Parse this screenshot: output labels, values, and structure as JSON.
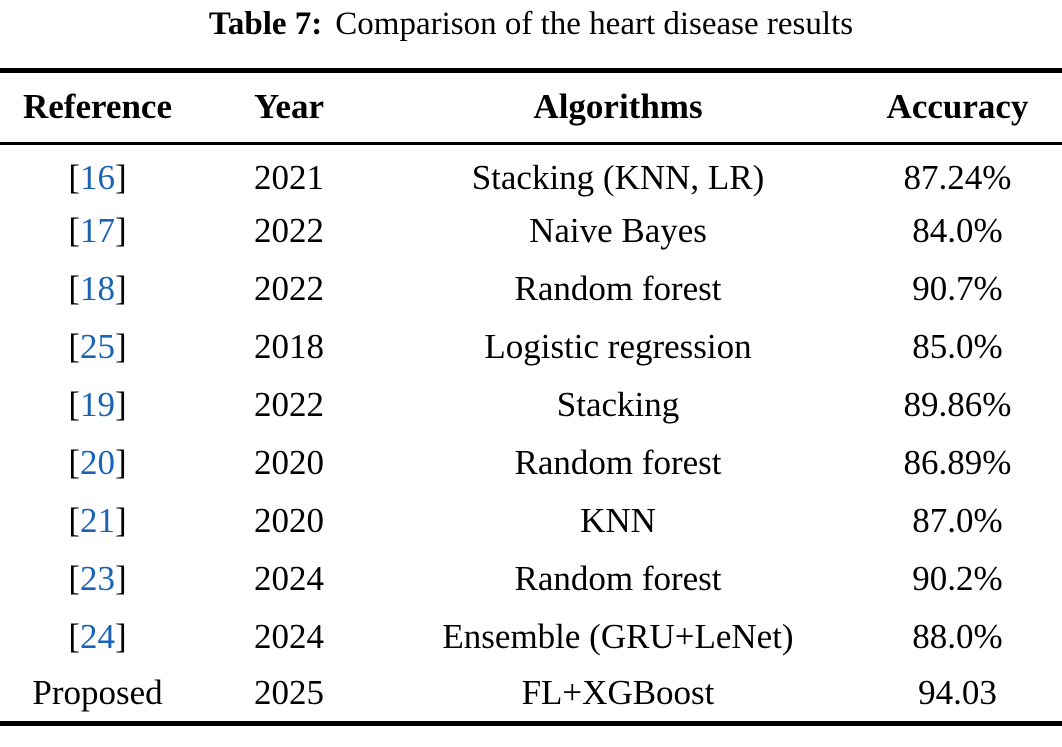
{
  "caption": {
    "label": "Table 7:",
    "text": "Comparison of the heart disease results"
  },
  "table": {
    "columns": [
      "Reference",
      "Year",
      "Algorithms",
      "Accuracy"
    ],
    "rows": [
      {
        "reference": "16",
        "citation": true,
        "year": "2021",
        "algorithm": "Stacking (KNN, LR)",
        "accuracy": "87.24%"
      },
      {
        "reference": "17",
        "citation": true,
        "year": "2022",
        "algorithm": "Naive Bayes",
        "accuracy": "84.0%"
      },
      {
        "reference": "18",
        "citation": true,
        "year": "2022",
        "algorithm": "Random forest",
        "accuracy": "90.7%"
      },
      {
        "reference": "25",
        "citation": true,
        "year": "2018",
        "algorithm": "Logistic regression",
        "accuracy": "85.0%"
      },
      {
        "reference": "19",
        "citation": true,
        "year": "2022",
        "algorithm": "Stacking",
        "accuracy": "89.86%"
      },
      {
        "reference": "20",
        "citation": true,
        "year": "2020",
        "algorithm": "Random forest",
        "accuracy": "86.89%"
      },
      {
        "reference": "21",
        "citation": true,
        "year": "2020",
        "algorithm": "KNN",
        "accuracy": "87.0%"
      },
      {
        "reference": "23",
        "citation": true,
        "year": "2024",
        "algorithm": "Random forest",
        "accuracy": "90.2%"
      },
      {
        "reference": "24",
        "citation": true,
        "year": "2024",
        "algorithm": "Ensemble (GRU+LeNet)",
        "accuracy": "88.0%"
      },
      {
        "reference": "Proposed",
        "citation": false,
        "year": "2025",
        "algorithm": "FL+XGBoost",
        "accuracy": "94.03"
      }
    ]
  },
  "colors": {
    "citation_blue": "#1a63b5",
    "text": "#000000",
    "background": "#ffffff"
  }
}
